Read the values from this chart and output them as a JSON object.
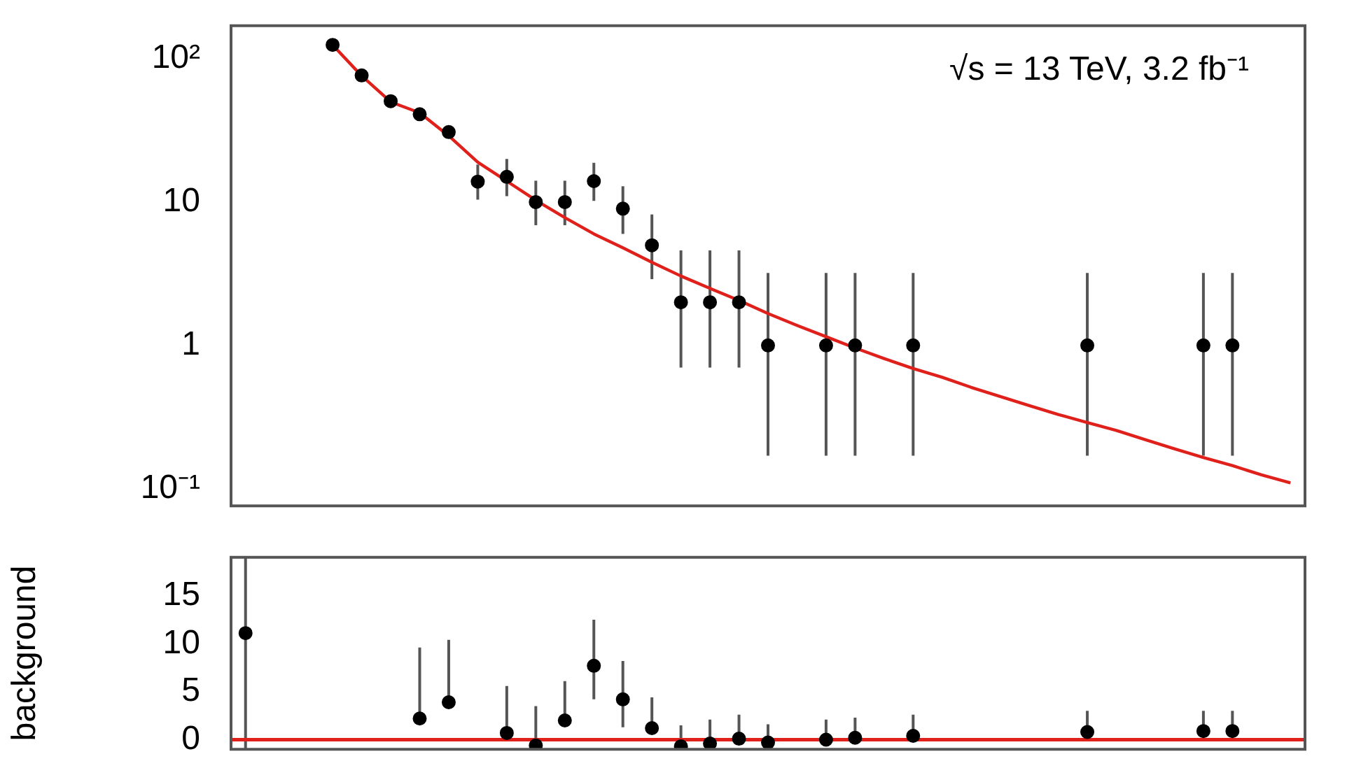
{
  "chart_data": [
    {
      "type": "scatter",
      "annotations": [
        "√s = 13 TeV, 3.2 fb⁻¹"
      ],
      "categories": [
        null,
        null,
        null,
        null,
        null,
        null,
        null,
        null,
        null,
        null,
        null,
        null,
        null,
        null,
        null,
        null,
        null,
        null,
        null,
        null,
        null,
        null,
        null,
        null,
        null,
        null,
        null,
        null,
        null,
        null,
        null,
        null,
        null,
        null,
        null,
        null,
        null
      ],
      "log": "y",
      "ylim": [
        0.076,
        170
      ],
      "yticks": [
        {
          "value": 0.1,
          "label": "10⁻¹"
        },
        1,
        10,
        {
          "value": 100,
          "label": "10²"
        }
      ],
      "grid": false,
      "legend": false,
      "tick_labels": "y",
      "series": [
        {
          "marker": "circle",
          "color": "#000000",
          "values": [
            null,
            null,
            null,
            125,
            76.5,
            50.6,
            41,
            30.8,
            13.9,
            15,
            10,
            10,
            14,
            9,
            5,
            2,
            2,
            2,
            1,
            null,
            1,
            1,
            null,
            1,
            null,
            null,
            null,
            null,
            null,
            1,
            null,
            null,
            null,
            1,
            1,
            null,
            null
          ],
          "errors": [
            null,
            null,
            null,
            null,
            null,
            null,
            null,
            null,
            [
              10.4,
              18.3
            ],
            [
              11,
              20
            ],
            [
              6.9,
              14.1
            ],
            [
              6.9,
              14.1
            ],
            [
              10.2,
              18.8
            ],
            [
              6,
              12.9
            ],
            [
              2.9,
              8.2
            ],
            [
              0.7,
              4.6
            ],
            [
              0.7,
              4.6
            ],
            [
              0.7,
              4.6
            ],
            [
              0.17,
              3.2
            ],
            null,
            [
              0.17,
              3.2
            ],
            [
              0.17,
              3.2
            ],
            null,
            [
              0.17,
              3.2
            ],
            null,
            null,
            null,
            null,
            null,
            [
              0.17,
              3.2
            ],
            null,
            null,
            null,
            [
              0.17,
              3.2
            ],
            [
              0.17,
              3.2
            ],
            null,
            null
          ]
        },
        {
          "type": "line",
          "color": "#e0201b",
          "values": [
            null,
            null,
            null,
            125,
            76,
            50,
            42,
            29,
            19,
            14,
            10.3,
            7.8,
            6,
            4.8,
            3.8,
            3.05,
            2.5,
            2.06,
            1.67,
            1.38,
            1.15,
            0.96,
            0.81,
            0.69,
            0.6,
            0.51,
            0.44,
            0.38,
            0.33,
            0.29,
            0.255,
            0.22,
            0.19,
            0.165,
            0.145,
            0.125,
            0.11
          ]
        }
      ]
    },
    {
      "type": "scatter",
      "ylabel": "background",
      "categories": [
        null,
        null,
        null,
        null,
        null,
        null,
        null,
        null,
        null,
        null,
        null,
        null,
        null,
        null,
        null,
        null,
        null,
        null,
        null,
        null,
        null,
        null,
        null,
        null,
        null,
        null,
        null,
        null,
        null,
        null,
        null,
        null,
        null,
        null,
        null,
        null,
        null
      ],
      "ylim": [
        -1,
        19
      ],
      "yticks": [
        0,
        5,
        10,
        15
      ],
      "grid": false,
      "legend": false,
      "tick_labels": "y",
      "marker": "circle",
      "ref_lines": [
        {
          "axis": "y",
          "value": 0,
          "color": "#e0201b"
        }
      ],
      "series": [
        {
          "color": "#000000",
          "values": [
            11.1,
            null,
            null,
            null,
            null,
            null,
            2.2,
            3.9,
            null,
            0.7,
            -0.6,
            2.0,
            7.7,
            4.2,
            1.2,
            -0.7,
            -0.4,
            0.1,
            -0.3,
            null,
            0,
            0.2,
            null,
            0.4,
            null,
            null,
            null,
            null,
            null,
            0.8,
            null,
            null,
            null,
            0.9,
            0.9,
            null,
            null
          ],
          "errors": [
            [
              -1,
              19
            ],
            null,
            null,
            null,
            null,
            null,
            [
              2.2,
              9.6
            ],
            [
              3.9,
              10.4
            ],
            null,
            [
              0.7,
              5.6
            ],
            [
              -0.6,
              3.5
            ],
            [
              2.0,
              6.1
            ],
            [
              4.2,
              12.5
            ],
            [
              1.3,
              8.2
            ],
            [
              1.2,
              4.4
            ],
            [
              -0.7,
              1.5
            ],
            [
              -0.4,
              2.1
            ],
            [
              0.1,
              2.6
            ],
            [
              -0.3,
              1.6
            ],
            null,
            [
              0,
              2.1
            ],
            [
              0.2,
              2.3
            ],
            null,
            [
              0.4,
              2.6
            ],
            null,
            null,
            null,
            null,
            null,
            [
              0.8,
              3.0
            ],
            null,
            null,
            null,
            [
              0.9,
              3.0
            ],
            [
              0.9,
              3.0
            ],
            null,
            null
          ]
        }
      ]
    }
  ]
}
